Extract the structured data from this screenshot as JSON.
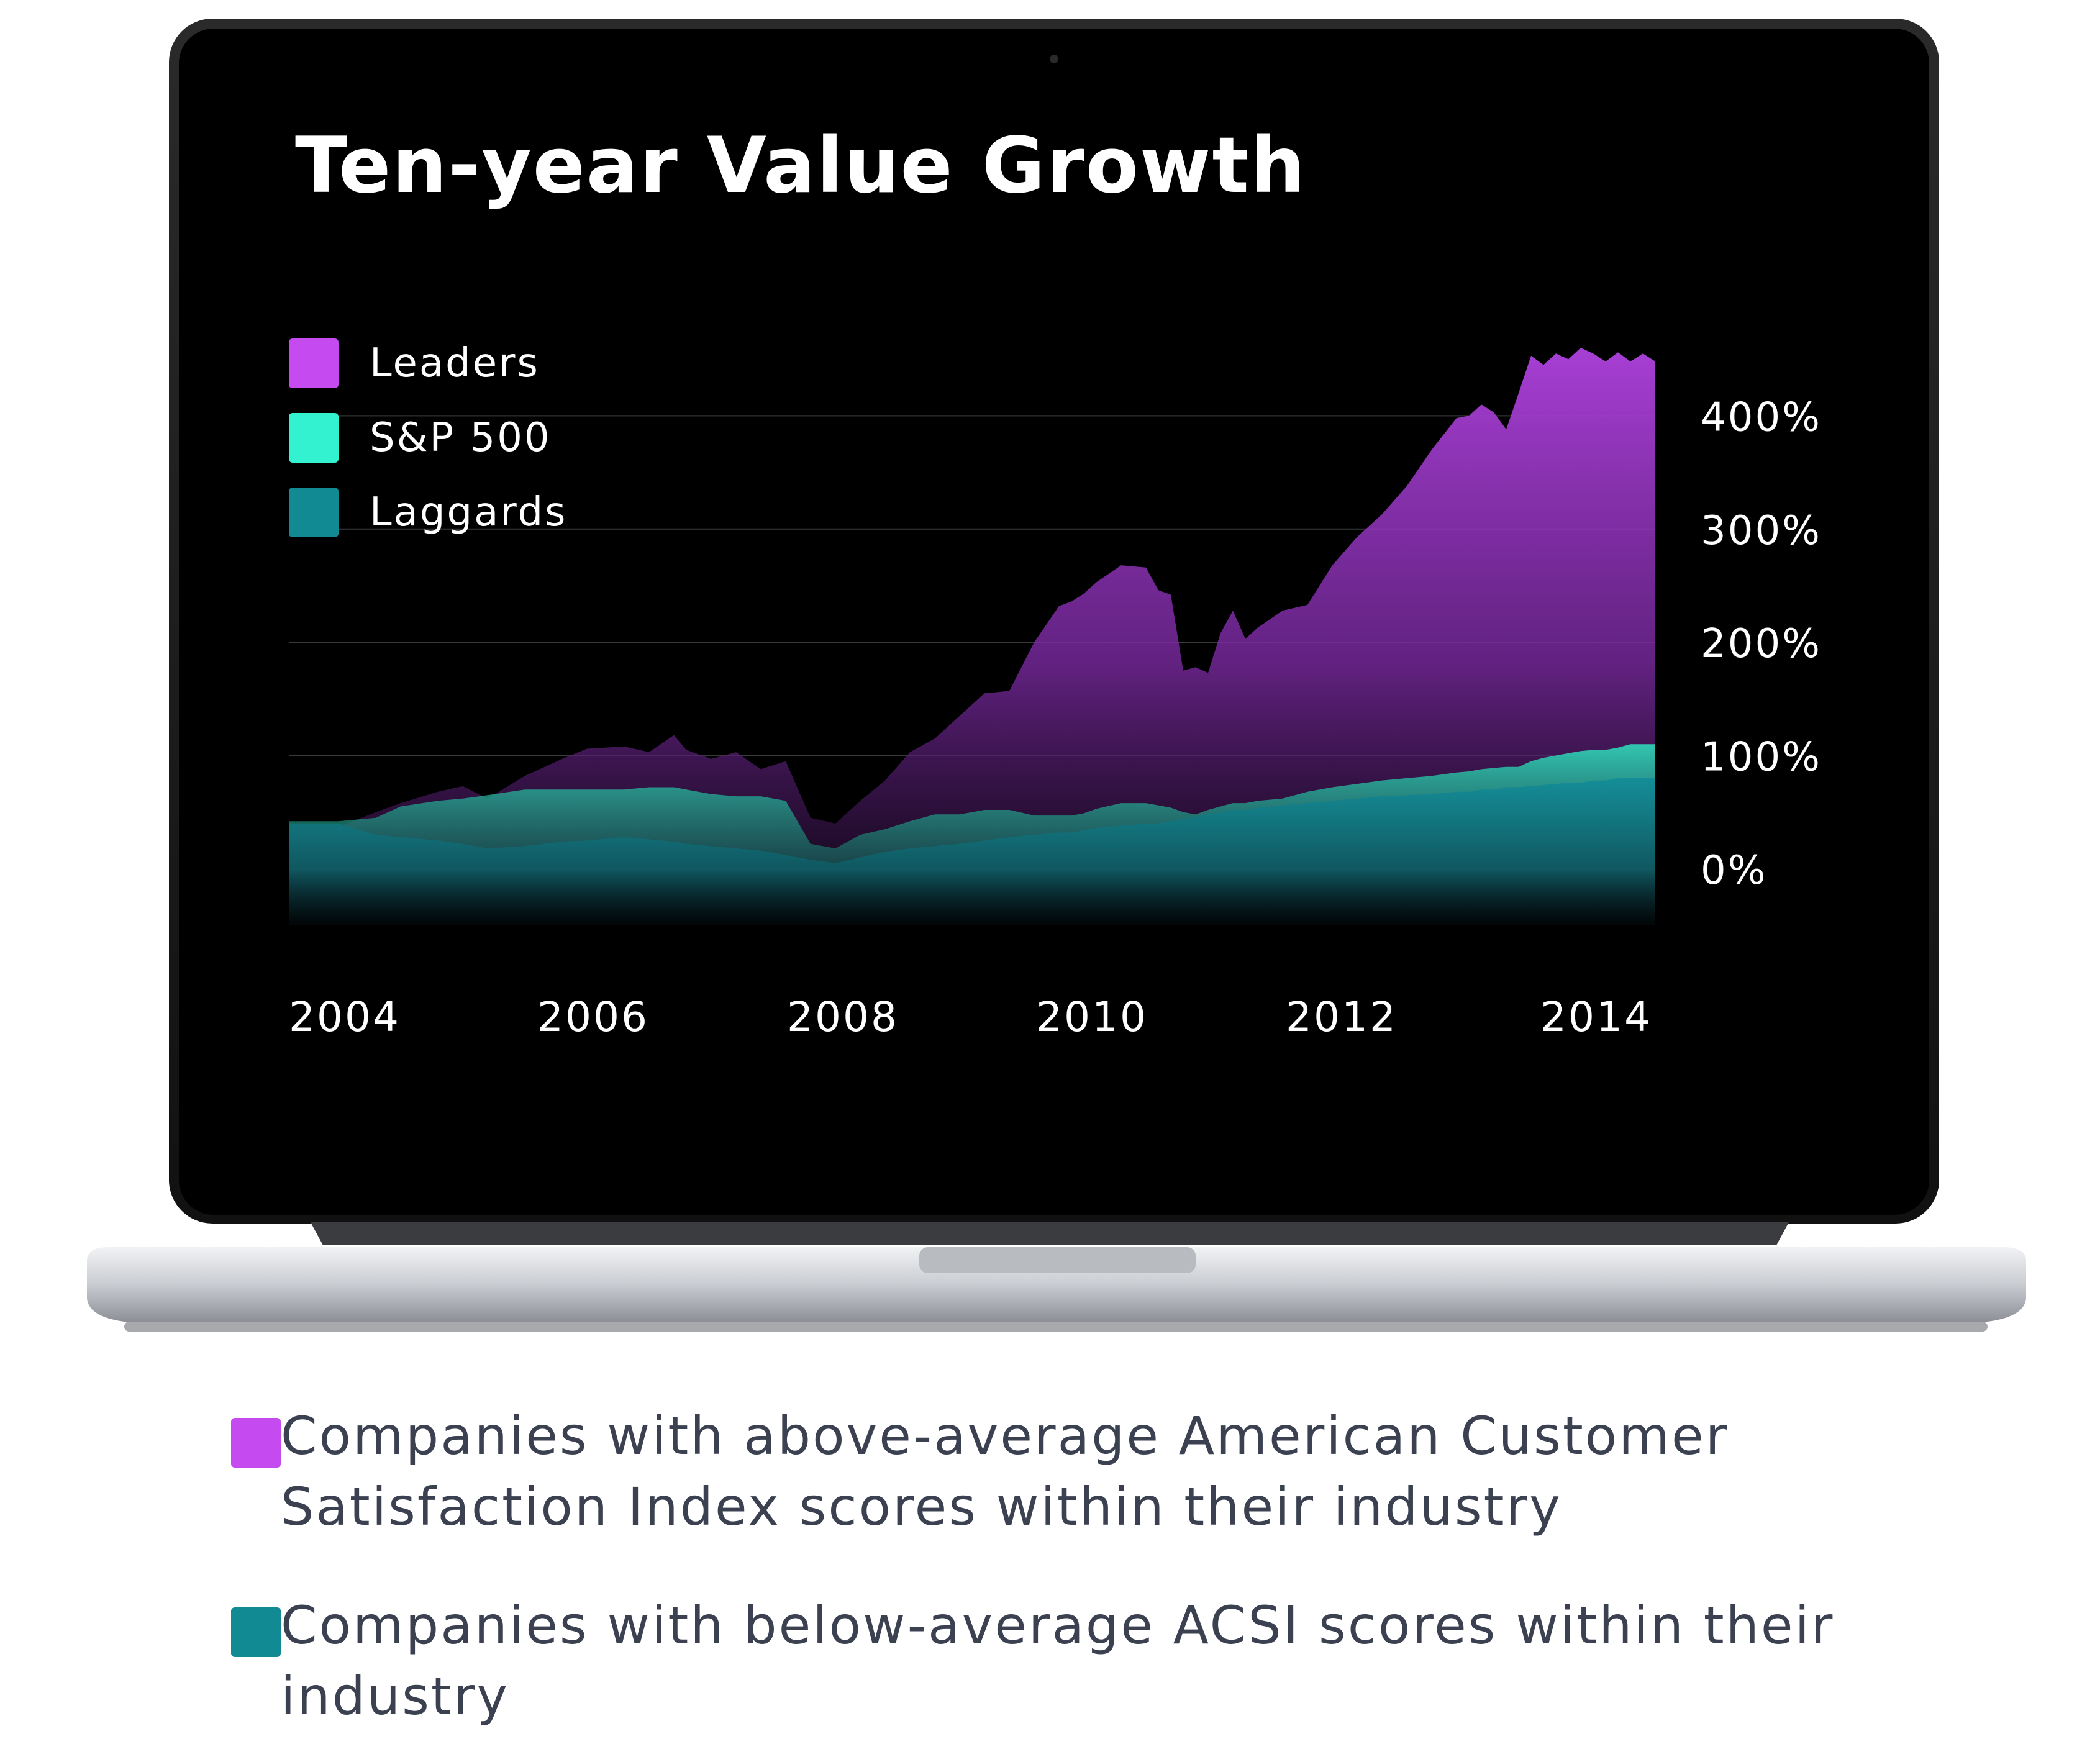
{
  "colors": {
    "leaders": "#c54bf0",
    "sp500": "#32f2cf",
    "laggards": "#128a94",
    "screen": "#000000",
    "footnote_text": "#3b4150"
  },
  "chart_data": {
    "type": "area",
    "title": "Ten-year Value Growth",
    "xlabel": "",
    "ylabel": "",
    "x_ticks": [
      "2004",
      "2006",
      "2008",
      "2010",
      "2012",
      "2014"
    ],
    "y_ticks": [
      "0%",
      "100%",
      "200%",
      "300%",
      "400%"
    ],
    "xlim": [
      2003.6,
      2014.6
    ],
    "ylim": [
      -50,
      460
    ],
    "grid": true,
    "legend_position": "top-left",
    "series": [
      {
        "name": "Leaders",
        "color": "#c54bf0",
        "x": [
          2003.6,
          2004.0,
          2004.3,
          2004.5,
          2004.8,
          2005.0,
          2005.2,
          2005.5,
          2005.8,
          2006.0,
          2006.3,
          2006.5,
          2006.7,
          2006.8,
          2007.0,
          2007.2,
          2007.4,
          2007.6,
          2007.8,
          2008.0,
          2008.2,
          2008.4,
          2008.6,
          2008.8,
          2009.0,
          2009.2,
          2009.4,
          2009.6,
          2009.8,
          2009.9,
          2010.0,
          2010.1,
          2010.3,
          2010.5,
          2010.6,
          2010.7,
          2010.8,
          2010.9,
          2011.0,
          2011.1,
          2011.2,
          2011.3,
          2011.4,
          2011.6,
          2011.8,
          2012.0,
          2012.2,
          2012.4,
          2012.6,
          2012.8,
          2013.0,
          2013.1,
          2013.2,
          2013.3,
          2013.4,
          2013.5,
          2013.6,
          2013.7,
          2013.8,
          2013.9,
          2014.0,
          2014.1,
          2014.2,
          2014.3,
          2014.4,
          2014.5,
          2014.6
        ],
        "values": [
          37,
          37,
          50,
          58,
          68,
          73,
          62,
          82,
          97,
          106,
          108,
          103,
          118,
          105,
          97,
          103,
          88,
          95,
          45,
          40,
          60,
          78,
          103,
          115,
          135,
          155,
          157,
          200,
          232,
          236,
          243,
          253,
          268,
          266,
          246,
          242,
          175,
          178,
          173,
          208,
          228,
          203,
          213,
          228,
          233,
          268,
          293,
          313,
          338,
          370,
          398,
          400,
          410,
          403,
          388,
          420,
          453,
          445,
          455,
          450,
          460,
          455,
          448,
          456,
          448,
          455,
          448
        ]
      },
      {
        "name": "S&P 500",
        "color": "#32f2cf",
        "x": [
          2003.6,
          2004.0,
          2004.3,
          2004.5,
          2004.8,
          2005.0,
          2005.2,
          2005.5,
          2005.8,
          2006.0,
          2006.3,
          2006.5,
          2006.7,
          2006.8,
          2007.0,
          2007.2,
          2007.4,
          2007.6,
          2007.8,
          2008.0,
          2008.2,
          2008.4,
          2008.6,
          2008.8,
          2009.0,
          2009.2,
          2009.4,
          2009.6,
          2009.8,
          2009.9,
          2010.0,
          2010.1,
          2010.3,
          2010.5,
          2010.6,
          2010.7,
          2010.8,
          2010.9,
          2011.0,
          2011.1,
          2011.2,
          2011.3,
          2011.4,
          2011.6,
          2011.8,
          2012.0,
          2012.2,
          2012.4,
          2012.6,
          2012.8,
          2013.0,
          2013.1,
          2013.2,
          2013.3,
          2013.4,
          2013.5,
          2013.6,
          2013.7,
          2013.8,
          2013.9,
          2014.0,
          2014.1,
          2014.2,
          2014.3,
          2014.4,
          2014.5,
          2014.6
        ],
        "values": [
          42,
          42,
          45,
          55,
          60,
          62,
          65,
          70,
          70,
          70,
          70,
          72,
          72,
          70,
          66,
          64,
          64,
          60,
          22,
          18,
          30,
          35,
          42,
          48,
          48,
          52,
          52,
          47,
          47,
          47,
          49,
          53,
          58,
          58,
          56,
          54,
          50,
          48,
          52,
          55,
          58,
          58,
          60,
          62,
          68,
          72,
          75,
          78,
          80,
          82,
          85,
          86,
          88,
          89,
          90,
          90,
          95,
          98,
          100,
          102,
          104,
          105,
          105,
          107,
          110,
          110,
          110
        ]
      },
      {
        "name": "Laggards",
        "color": "#128a94",
        "x": [
          2003.6,
          2004.0,
          2004.3,
          2004.5,
          2004.8,
          2005.0,
          2005.2,
          2005.5,
          2005.8,
          2006.0,
          2006.3,
          2006.5,
          2006.7,
          2006.8,
          2007.0,
          2007.2,
          2007.4,
          2007.6,
          2007.8,
          2008.0,
          2008.2,
          2008.4,
          2008.6,
          2008.8,
          2009.0,
          2009.2,
          2009.4,
          2009.6,
          2009.8,
          2009.9,
          2010.0,
          2010.1,
          2010.3,
          2010.5,
          2010.6,
          2010.7,
          2010.8,
          2010.9,
          2011.0,
          2011.1,
          2011.2,
          2011.3,
          2011.4,
          2011.6,
          2011.8,
          2012.0,
          2012.2,
          2012.4,
          2012.6,
          2012.8,
          2013.0,
          2013.1,
          2013.2,
          2013.3,
          2013.4,
          2013.5,
          2013.6,
          2013.7,
          2013.8,
          2013.9,
          2014.0,
          2014.1,
          2014.2,
          2014.3,
          2014.4,
          2014.5,
          2014.6
        ],
        "values": [
          40,
          40,
          30,
          28,
          25,
          22,
          18,
          20,
          24,
          25,
          28,
          26,
          24,
          22,
          20,
          18,
          16,
          12,
          8,
          5,
          10,
          15,
          18,
          20,
          22,
          25,
          28,
          30,
          32,
          32,
          34,
          36,
          38,
          40,
          40,
          42,
          44,
          46,
          48,
          50,
          52,
          52,
          54,
          56,
          58,
          60,
          62,
          64,
          65,
          66,
          68,
          68,
          70,
          70,
          72,
          72,
          73,
          74,
          75,
          76,
          76,
          78,
          78,
          80,
          80,
          80,
          80
        ]
      }
    ]
  },
  "footnotes": [
    {
      "color": "#c54bf0",
      "text": "Companies with above-average American Customer Satisfaction Index scores within their industry"
    },
    {
      "color": "#128a94",
      "text": "Companies with below-average ACSI scores within their industry"
    }
  ]
}
